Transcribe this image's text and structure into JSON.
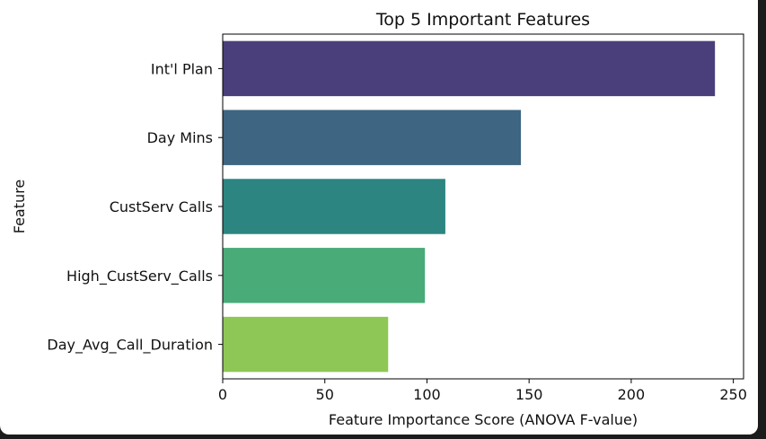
{
  "chart_data": {
    "type": "bar",
    "orientation": "horizontal",
    "title": "Top 5 Important Features",
    "xlabel": "Feature Importance Score (ANOVA F-value)",
    "ylabel": "Feature",
    "categories": [
      "Int'l Plan",
      "Day Mins",
      "CustServ Calls",
      "High_CustServ_Calls",
      "Day_Avg_Call_Duration"
    ],
    "values": [
      241,
      146,
      109,
      99,
      81
    ],
    "colors": [
      "#4a3f7b",
      "#3e6582",
      "#2c8580",
      "#48ab78",
      "#8fc756"
    ],
    "xlim": [
      0,
      255
    ],
    "xticks": [
      0,
      50,
      100,
      150,
      200,
      250
    ],
    "grid": false,
    "legend": false
  }
}
